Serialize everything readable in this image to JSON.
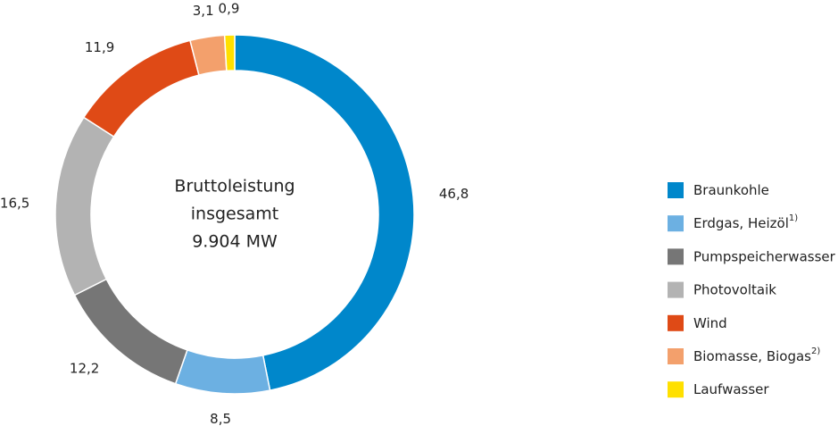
{
  "chart_data": {
    "type": "donut",
    "center_label": [
      "Bruttoleistung",
      "insgesamt",
      "9.904 MW"
    ],
    "categories": [
      "Braunkohle",
      "Erdgas, Heizöl",
      "Pumpspeicherwasser",
      "Photovoltaik",
      "Wind",
      "Biomasse, Biogas",
      "Laufwasser"
    ],
    "category_notes": [
      null,
      "1)",
      null,
      null,
      null,
      "2)",
      null
    ],
    "values": [
      46.8,
      8.5,
      12.2,
      16.5,
      11.9,
      3.1,
      0.9
    ],
    "value_labels": [
      "46,8",
      "8,5",
      "12,2",
      "16,5",
      "11,9",
      "3,1",
      "0,9"
    ],
    "colors": [
      "#0087cb",
      "#6cb0e2",
      "#767676",
      "#b3b3b3",
      "#df4a16",
      "#f3a06c",
      "#ffe000"
    ],
    "legend": "right"
  }
}
